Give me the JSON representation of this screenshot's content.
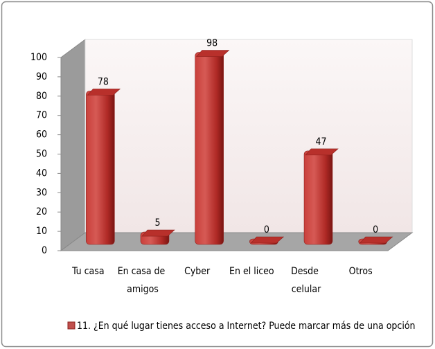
{
  "chart_data": {
    "type": "bar3d",
    "categories": [
      "Tu casa",
      "En casa de amigos",
      "Cyber",
      "En el liceo",
      "Desde celular",
      "Otros"
    ],
    "series": [
      {
        "name": "11. ¿En qué lugar tienes acceso a Internet? Puede marcar más de  una opción",
        "color": "#c0504d",
        "values": [
          78,
          5,
          98,
          0,
          47,
          0
        ]
      }
    ],
    "ylim": [
      0,
      100
    ],
    "yticks": [
      0,
      10,
      20,
      30,
      40,
      50,
      60,
      70,
      80,
      90,
      100
    ],
    "data_labels": true
  }
}
